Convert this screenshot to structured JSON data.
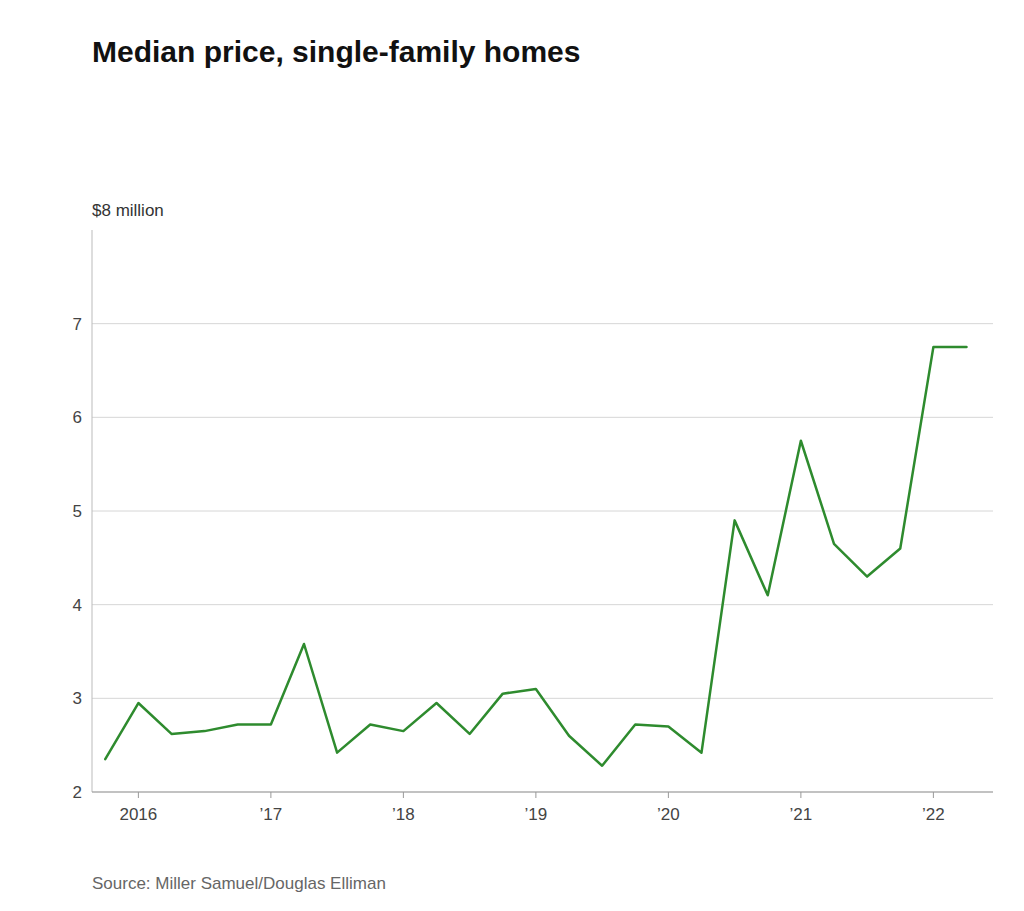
{
  "chart_data": {
    "type": "line",
    "title": "Median price, single-family homes",
    "ylabel": "$8 million",
    "annotations": [
      "Source: Miller Samuel/Douglas Elliman"
    ],
    "color": "#2e8b2e",
    "grid": true,
    "x": [
      2015.75,
      2016.0,
      2016.25,
      2016.5,
      2016.75,
      2017.0,
      2017.25,
      2017.5,
      2017.75,
      2018.0,
      2018.25,
      2018.5,
      2018.75,
      2019.0,
      2019.25,
      2019.5,
      2019.75,
      2020.0,
      2020.25,
      2020.5,
      2020.75,
      2021.0,
      2021.25,
      2021.5,
      2021.75,
      2022.0,
      2022.25
    ],
    "values": [
      2.35,
      2.95,
      2.62,
      2.65,
      2.72,
      2.72,
      3.58,
      2.42,
      2.72,
      2.65,
      2.95,
      2.62,
      3.05,
      3.1,
      2.6,
      2.28,
      2.72,
      2.7,
      2.42,
      4.9,
      4.1,
      5.75,
      4.65,
      4.3,
      4.6,
      6.75,
      6.75
    ],
    "xlim": [
      2015.65,
      2022.45
    ],
    "xticks": [
      2016,
      {
        "value": 2017,
        "label": "’17"
      },
      {
        "value": 2018,
        "label": "’18"
      },
      {
        "value": 2019,
        "label": "’19"
      },
      {
        "value": 2020,
        "label": "’20"
      },
      {
        "value": 2021,
        "label": "’21"
      },
      {
        "value": 2022,
        "label": "’22"
      }
    ],
    "ylim": [
      2.0,
      8.0
    ],
    "yticks": [
      2,
      3,
      4,
      5,
      6,
      7
    ]
  }
}
